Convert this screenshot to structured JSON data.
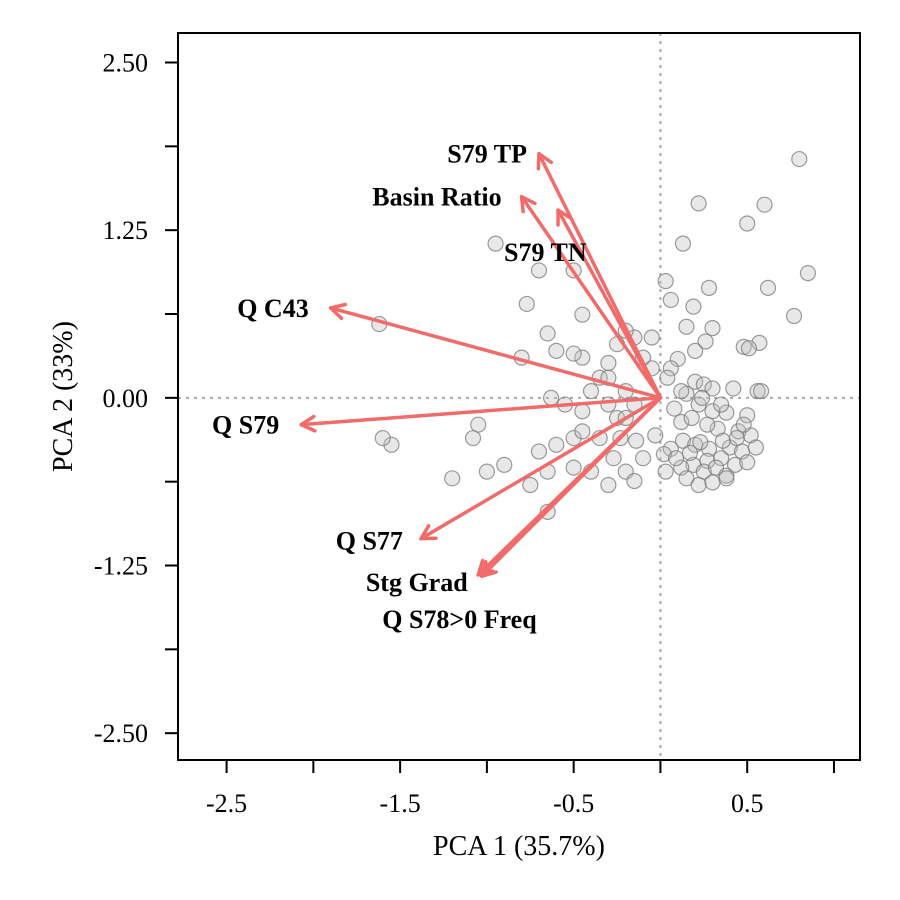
{
  "chart_data": {
    "type": "scatter",
    "xlabel": "PCA 1 (35.7%)",
    "ylabel": "PCA 2 (33%)",
    "xlim": [
      -2.78,
      1.15
    ],
    "ylim": [
      -2.7,
      2.72
    ],
    "x_ticks": [
      -2.5,
      -2.0,
      -1.5,
      -1.0,
      -0.5,
      0.0,
      0.5,
      1.0
    ],
    "x_tick_labels": [
      {
        "value": -2.5,
        "label": "-2.5"
      },
      {
        "value": -1.5,
        "label": "-1.5"
      },
      {
        "value": -0.5,
        "label": "-0.5"
      },
      {
        "value": 0.5,
        "label": "0.5"
      }
    ],
    "y_ticks": [
      -2.5,
      -1.875,
      -1.25,
      -0.625,
      0.0,
      0.625,
      1.25,
      1.875,
      2.5
    ],
    "y_tick_labels": [
      {
        "value": -2.5,
        "label": "-2.50"
      },
      {
        "value": -1.25,
        "label": "-1.25"
      },
      {
        "value": 0.0,
        "label": "0.00"
      },
      {
        "value": 1.25,
        "label": "1.25"
      },
      {
        "value": 2.5,
        "label": "2.50"
      }
    ],
    "reference_lines": {
      "x": 0,
      "y": 0,
      "style": "dotted"
    },
    "grid": false,
    "point_color": "#bdbdbd",
    "vector_color": "#f26b6b",
    "points": [
      [
        0.8,
        1.78
      ],
      [
        0.6,
        1.44
      ],
      [
        0.5,
        1.3
      ],
      [
        0.22,
        1.45
      ],
      [
        0.13,
        1.15
      ],
      [
        0.85,
        0.93
      ],
      [
        0.62,
        0.82
      ],
      [
        0.77,
        0.61
      ],
      [
        0.28,
        0.82
      ],
      [
        0.03,
        0.87
      ],
      [
        0.3,
        0.52
      ],
      [
        0.19,
        0.68
      ],
      [
        0.26,
        0.42
      ],
      [
        0.15,
        0.53
      ],
      [
        0.06,
        0.73
      ],
      [
        0.48,
        0.38
      ],
      [
        0.57,
        0.41
      ],
      [
        0.51,
        0.37
      ],
      [
        0.2,
        0.35
      ],
      [
        0.1,
        0.29
      ],
      [
        0.06,
        0.22
      ],
      [
        0.2,
        0.12
      ],
      [
        0.25,
        0.1
      ],
      [
        0.3,
        0.07
      ],
      [
        0.42,
        0.07
      ],
      [
        0.56,
        0.05
      ],
      [
        0.58,
        0.05
      ],
      [
        0.15,
        0.03
      ],
      [
        0.22,
        -0.05
      ],
      [
        0.08,
        -0.08
      ],
      [
        0.3,
        -0.1
      ],
      [
        0.38,
        -0.11
      ],
      [
        0.5,
        -0.13
      ],
      [
        0.33,
        -0.23
      ],
      [
        0.45,
        -0.25
      ],
      [
        0.52,
        -0.28
      ],
      [
        0.13,
        -0.32
      ],
      [
        0.2,
        -0.35
      ],
      [
        0.28,
        -0.38
      ],
      [
        0.4,
        -0.37
      ],
      [
        0.47,
        -0.4
      ],
      [
        0.55,
        -0.37
      ],
      [
        0.35,
        -0.45
      ],
      [
        0.27,
        -0.47
      ],
      [
        0.19,
        -0.5
      ],
      [
        0.12,
        -0.52
      ],
      [
        0.06,
        -0.38
      ],
      [
        0.02,
        -0.42
      ],
      [
        0.09,
        -0.45
      ],
      [
        0.25,
        -0.55
      ],
      [
        0.32,
        -0.52
      ],
      [
        0.38,
        -0.58
      ],
      [
        0.43,
        -0.5
      ],
      [
        0.5,
        -0.48
      ],
      [
        0.15,
        -0.6
      ],
      [
        0.22,
        -0.65
      ],
      [
        0.3,
        -0.63
      ],
      [
        0.38,
        -0.6
      ],
      [
        0.03,
        -0.55
      ],
      [
        0.17,
        -0.41
      ],
      [
        0.23,
        -0.33
      ],
      [
        0.36,
        -0.32
      ],
      [
        0.44,
        -0.3
      ],
      [
        0.48,
        -0.2
      ],
      [
        0.12,
        -0.18
      ],
      [
        0.27,
        -0.2
      ],
      [
        -0.03,
        -0.28
      ],
      [
        0.18,
        -0.15
      ],
      [
        0.35,
        -0.05
      ],
      [
        0.24,
        0.0
      ],
      [
        0.12,
        0.05
      ],
      [
        0.04,
        0.15
      ],
      [
        -0.05,
        0.22
      ],
      [
        -0.05,
        0.45
      ],
      [
        -0.1,
        0.3
      ],
      [
        -0.15,
        0.45
      ],
      [
        -0.2,
        0.5
      ],
      [
        -0.25,
        0.4
      ],
      [
        -0.3,
        0.26
      ],
      [
        -0.45,
        0.3
      ],
      [
        -0.5,
        0.33
      ],
      [
        -0.6,
        0.35
      ],
      [
        -0.65,
        0.48
      ],
      [
        -0.45,
        0.62
      ],
      [
        -0.5,
        0.95
      ],
      [
        -0.7,
        0.95
      ],
      [
        -0.95,
        1.15
      ],
      [
        -0.77,
        0.7
      ],
      [
        -0.8,
        0.3
      ],
      [
        -0.15,
        -0.05
      ],
      [
        -0.2,
        0.05
      ],
      [
        -0.25,
        -0.15
      ],
      [
        -0.3,
        -0.05
      ],
      [
        -0.35,
        0.15
      ],
      [
        -0.45,
        -0.1
      ],
      [
        -0.55,
        -0.05
      ],
      [
        -0.63,
        0.0
      ],
      [
        -0.6,
        -0.35
      ],
      [
        -0.7,
        -0.4
      ],
      [
        -0.5,
        -0.3
      ],
      [
        -0.35,
        -0.3
      ],
      [
        -0.27,
        -0.45
      ],
      [
        -0.23,
        -0.3
      ],
      [
        -0.14,
        -0.32
      ],
      [
        -0.1,
        -0.45
      ],
      [
        -0.2,
        -0.55
      ],
      [
        -0.15,
        -0.62
      ],
      [
        -0.3,
        -0.65
      ],
      [
        -0.4,
        -0.55
      ],
      [
        -0.5,
        -0.52
      ],
      [
        -0.65,
        -0.55
      ],
      [
        -0.75,
        -0.65
      ],
      [
        -0.65,
        -0.85
      ],
      [
        -0.9,
        -0.5
      ],
      [
        -1.0,
        -0.55
      ],
      [
        -1.2,
        -0.6
      ],
      [
        -1.05,
        -0.2
      ],
      [
        -1.08,
        -0.3
      ],
      [
        -1.55,
        -0.35
      ],
      [
        -1.6,
        -0.3
      ],
      [
        -1.62,
        0.55
      ],
      [
        -0.45,
        -0.25
      ],
      [
        -0.4,
        0.05
      ],
      [
        -0.3,
        0.15
      ],
      [
        -0.2,
        -0.15
      ]
    ],
    "loadings": [
      {
        "label": "S79 TP",
        "x": -0.7,
        "y": 1.82
      },
      {
        "label": "Basin Ratio",
        "x": -0.8,
        "y": 1.5
      },
      {
        "label": "S79 TN",
        "x": -0.59,
        "y": 1.4
      },
      {
        "label": "Q C43",
        "x": -1.9,
        "y": 0.67
      },
      {
        "label": "Q S79",
        "x": -2.07,
        "y": -0.2
      },
      {
        "label": "Q S77",
        "x": -1.38,
        "y": -1.05
      },
      {
        "label": "Stg Grad",
        "x": -1.03,
        "y": -1.33
      },
      {
        "label": "Q S78>0 Freq",
        "x": -1.05,
        "y": -1.32
      }
    ]
  }
}
